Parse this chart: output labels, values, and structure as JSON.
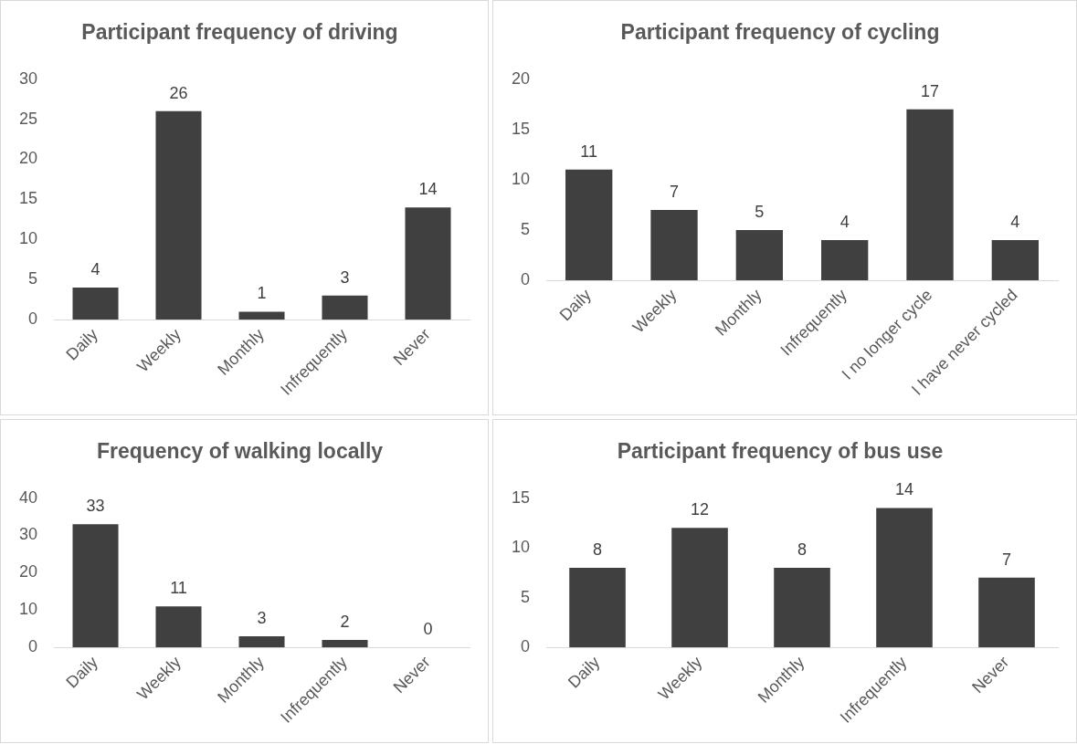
{
  "chart_data": [
    {
      "type": "bar",
      "title": "Participant frequency of driving",
      "categories": [
        "Daily",
        "Weekly",
        "Monthly",
        "Infrequently",
        "Never"
      ],
      "values": [
        4,
        26,
        1,
        3,
        14
      ],
      "color": "#404040",
      "ylim": [
        0,
        30
      ],
      "yticks": [
        0,
        5,
        10,
        15,
        20,
        25,
        30
      ],
      "data_labels": true,
      "grid": false
    },
    {
      "type": "bar",
      "title": "Participant frequency of cycling",
      "categories": [
        "Daily",
        "Weekly",
        "Monthly",
        "Infrequently",
        "I no longer cycle",
        "I have never cycled"
      ],
      "values": [
        11,
        7,
        5,
        4,
        17,
        4
      ],
      "color": "#404040",
      "ylim": [
        0,
        20
      ],
      "yticks": [
        0,
        5,
        10,
        15,
        20
      ],
      "data_labels": true,
      "grid": false
    },
    {
      "type": "bar",
      "title": "Frequency of walking locally",
      "categories": [
        "Daily",
        "Weekly",
        "Monthly",
        "Infrequently",
        "Never"
      ],
      "values": [
        33,
        11,
        3,
        2,
        0
      ],
      "color": "#404040",
      "ylim": [
        0,
        40
      ],
      "yticks": [
        0,
        10,
        20,
        30,
        40
      ],
      "data_labels": true,
      "grid": false
    },
    {
      "type": "bar",
      "title": "Participant frequency of bus use",
      "categories": [
        "Daily",
        "Weekly",
        "Monthly",
        "Infrequently",
        "Never"
      ],
      "values": [
        8,
        12,
        8,
        14,
        7
      ],
      "color": "#404040",
      "ylim": [
        0,
        15
      ],
      "yticks": [
        0,
        5,
        10,
        15
      ],
      "data_labels": true,
      "grid": false
    }
  ]
}
